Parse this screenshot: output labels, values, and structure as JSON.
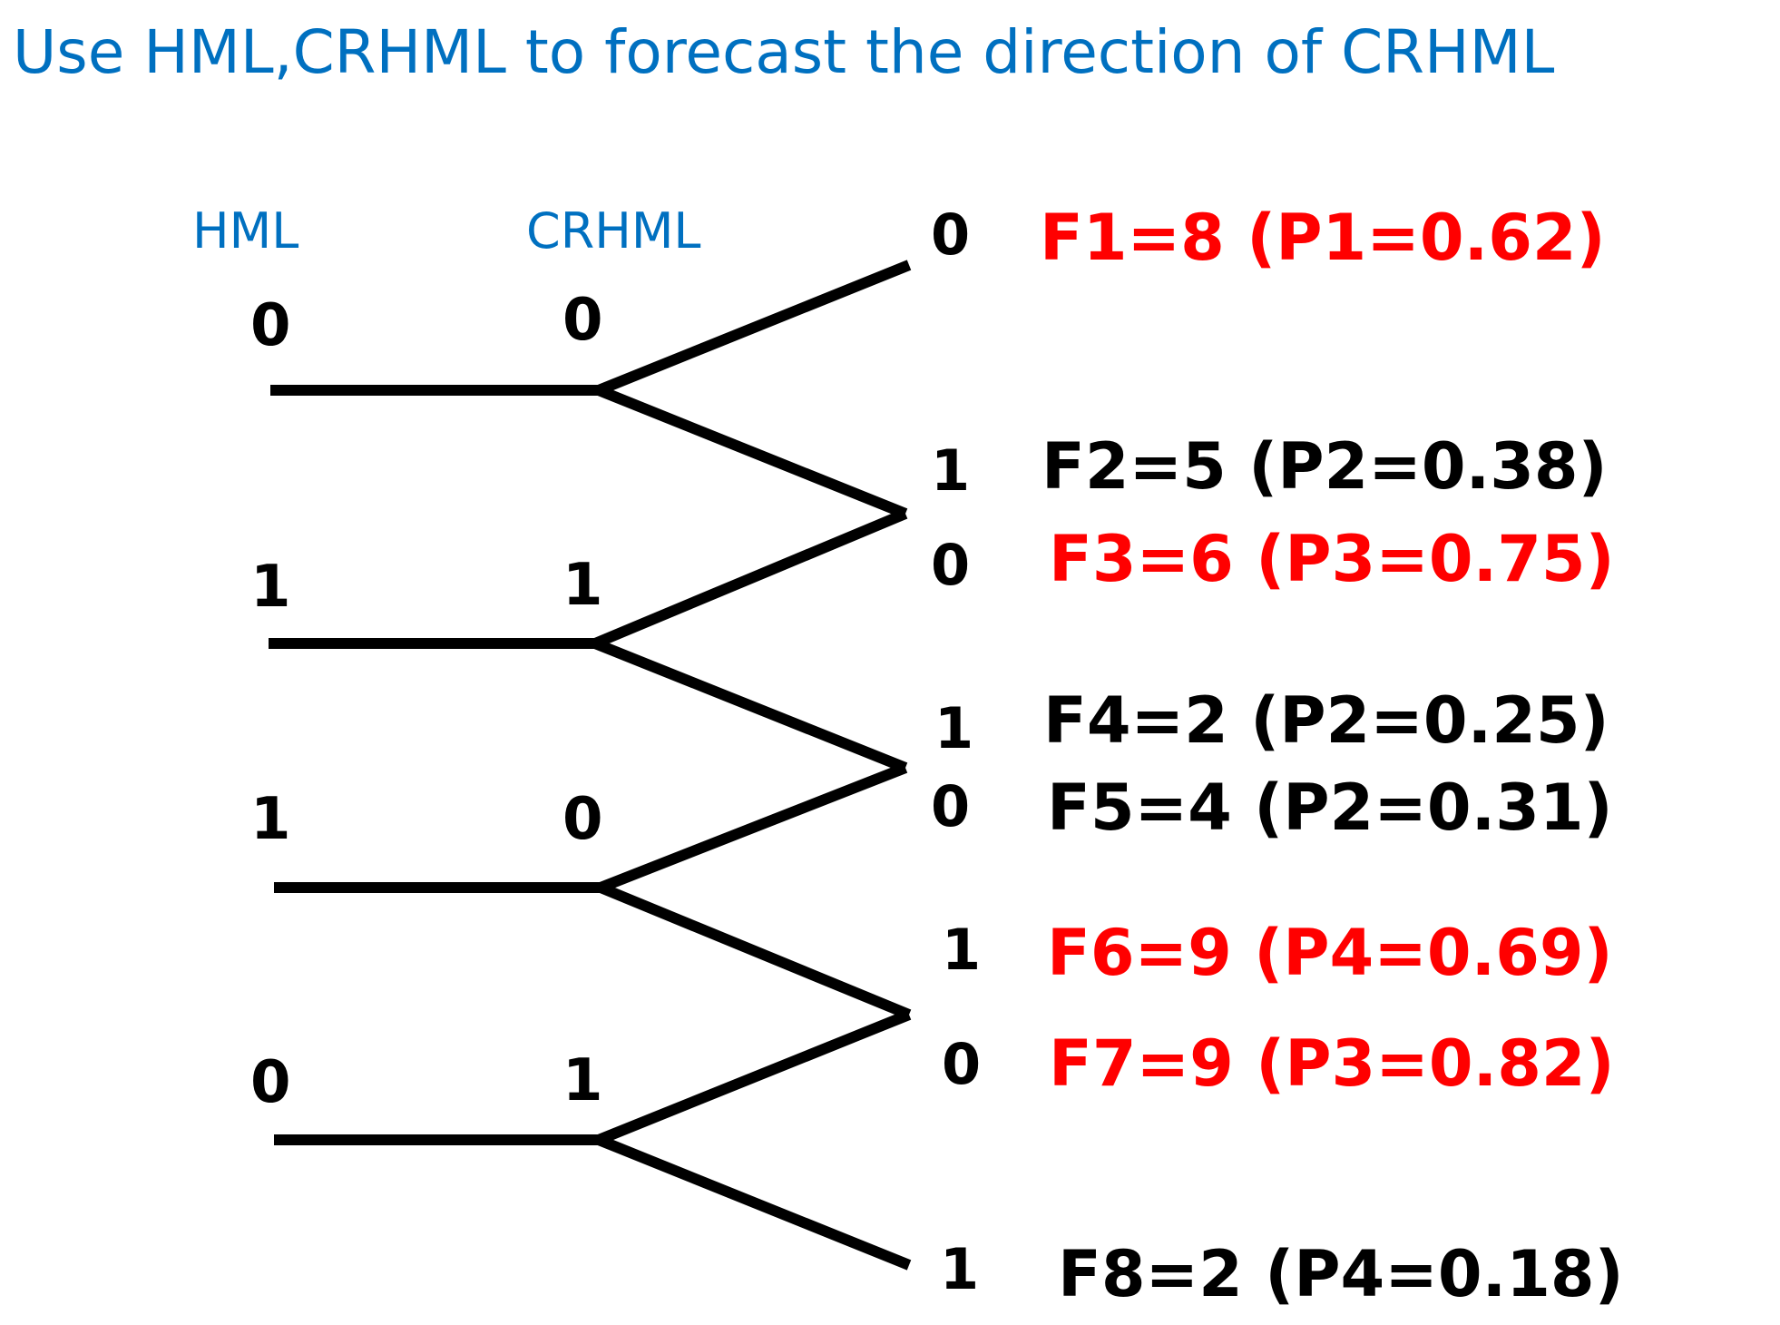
{
  "title": "Use HML,CRHML to forecast the direction of CRHML",
  "columns": {
    "hml": "HML",
    "crhml": "CRHML"
  },
  "rows": [
    {
      "hml": "0",
      "crhml": "0"
    },
    {
      "hml": "1",
      "crhml": "1"
    },
    {
      "hml": "1",
      "crhml": "0"
    },
    {
      "hml": "0",
      "crhml": "1"
    }
  ],
  "leaves": [
    {
      "value": "0",
      "outcome": "F1=8 (P1=0.62)",
      "highlight": true
    },
    {
      "value": "1",
      "outcome": "F2=5 (P2=0.38)",
      "highlight": false
    },
    {
      "value": "0",
      "outcome": "F3=6 (P3=0.75)",
      "highlight": true
    },
    {
      "value": "1",
      "outcome": "F4=2 (P2=0.25)",
      "highlight": false
    },
    {
      "value": "0",
      "outcome": "F5=4 (P2=0.31)",
      "highlight": false
    },
    {
      "value": "1",
      "outcome": "F6=9 (P4=0.69)",
      "highlight": true
    },
    {
      "value": "0",
      "outcome": "F7=9 (P3=0.82)",
      "highlight": true
    },
    {
      "value": "1",
      "outcome": "F8=2 (P4=0.18)",
      "highlight": false
    }
  ],
  "colors": {
    "title": "#0070c0",
    "highlight": "#ff0000",
    "normal": "#000000"
  }
}
